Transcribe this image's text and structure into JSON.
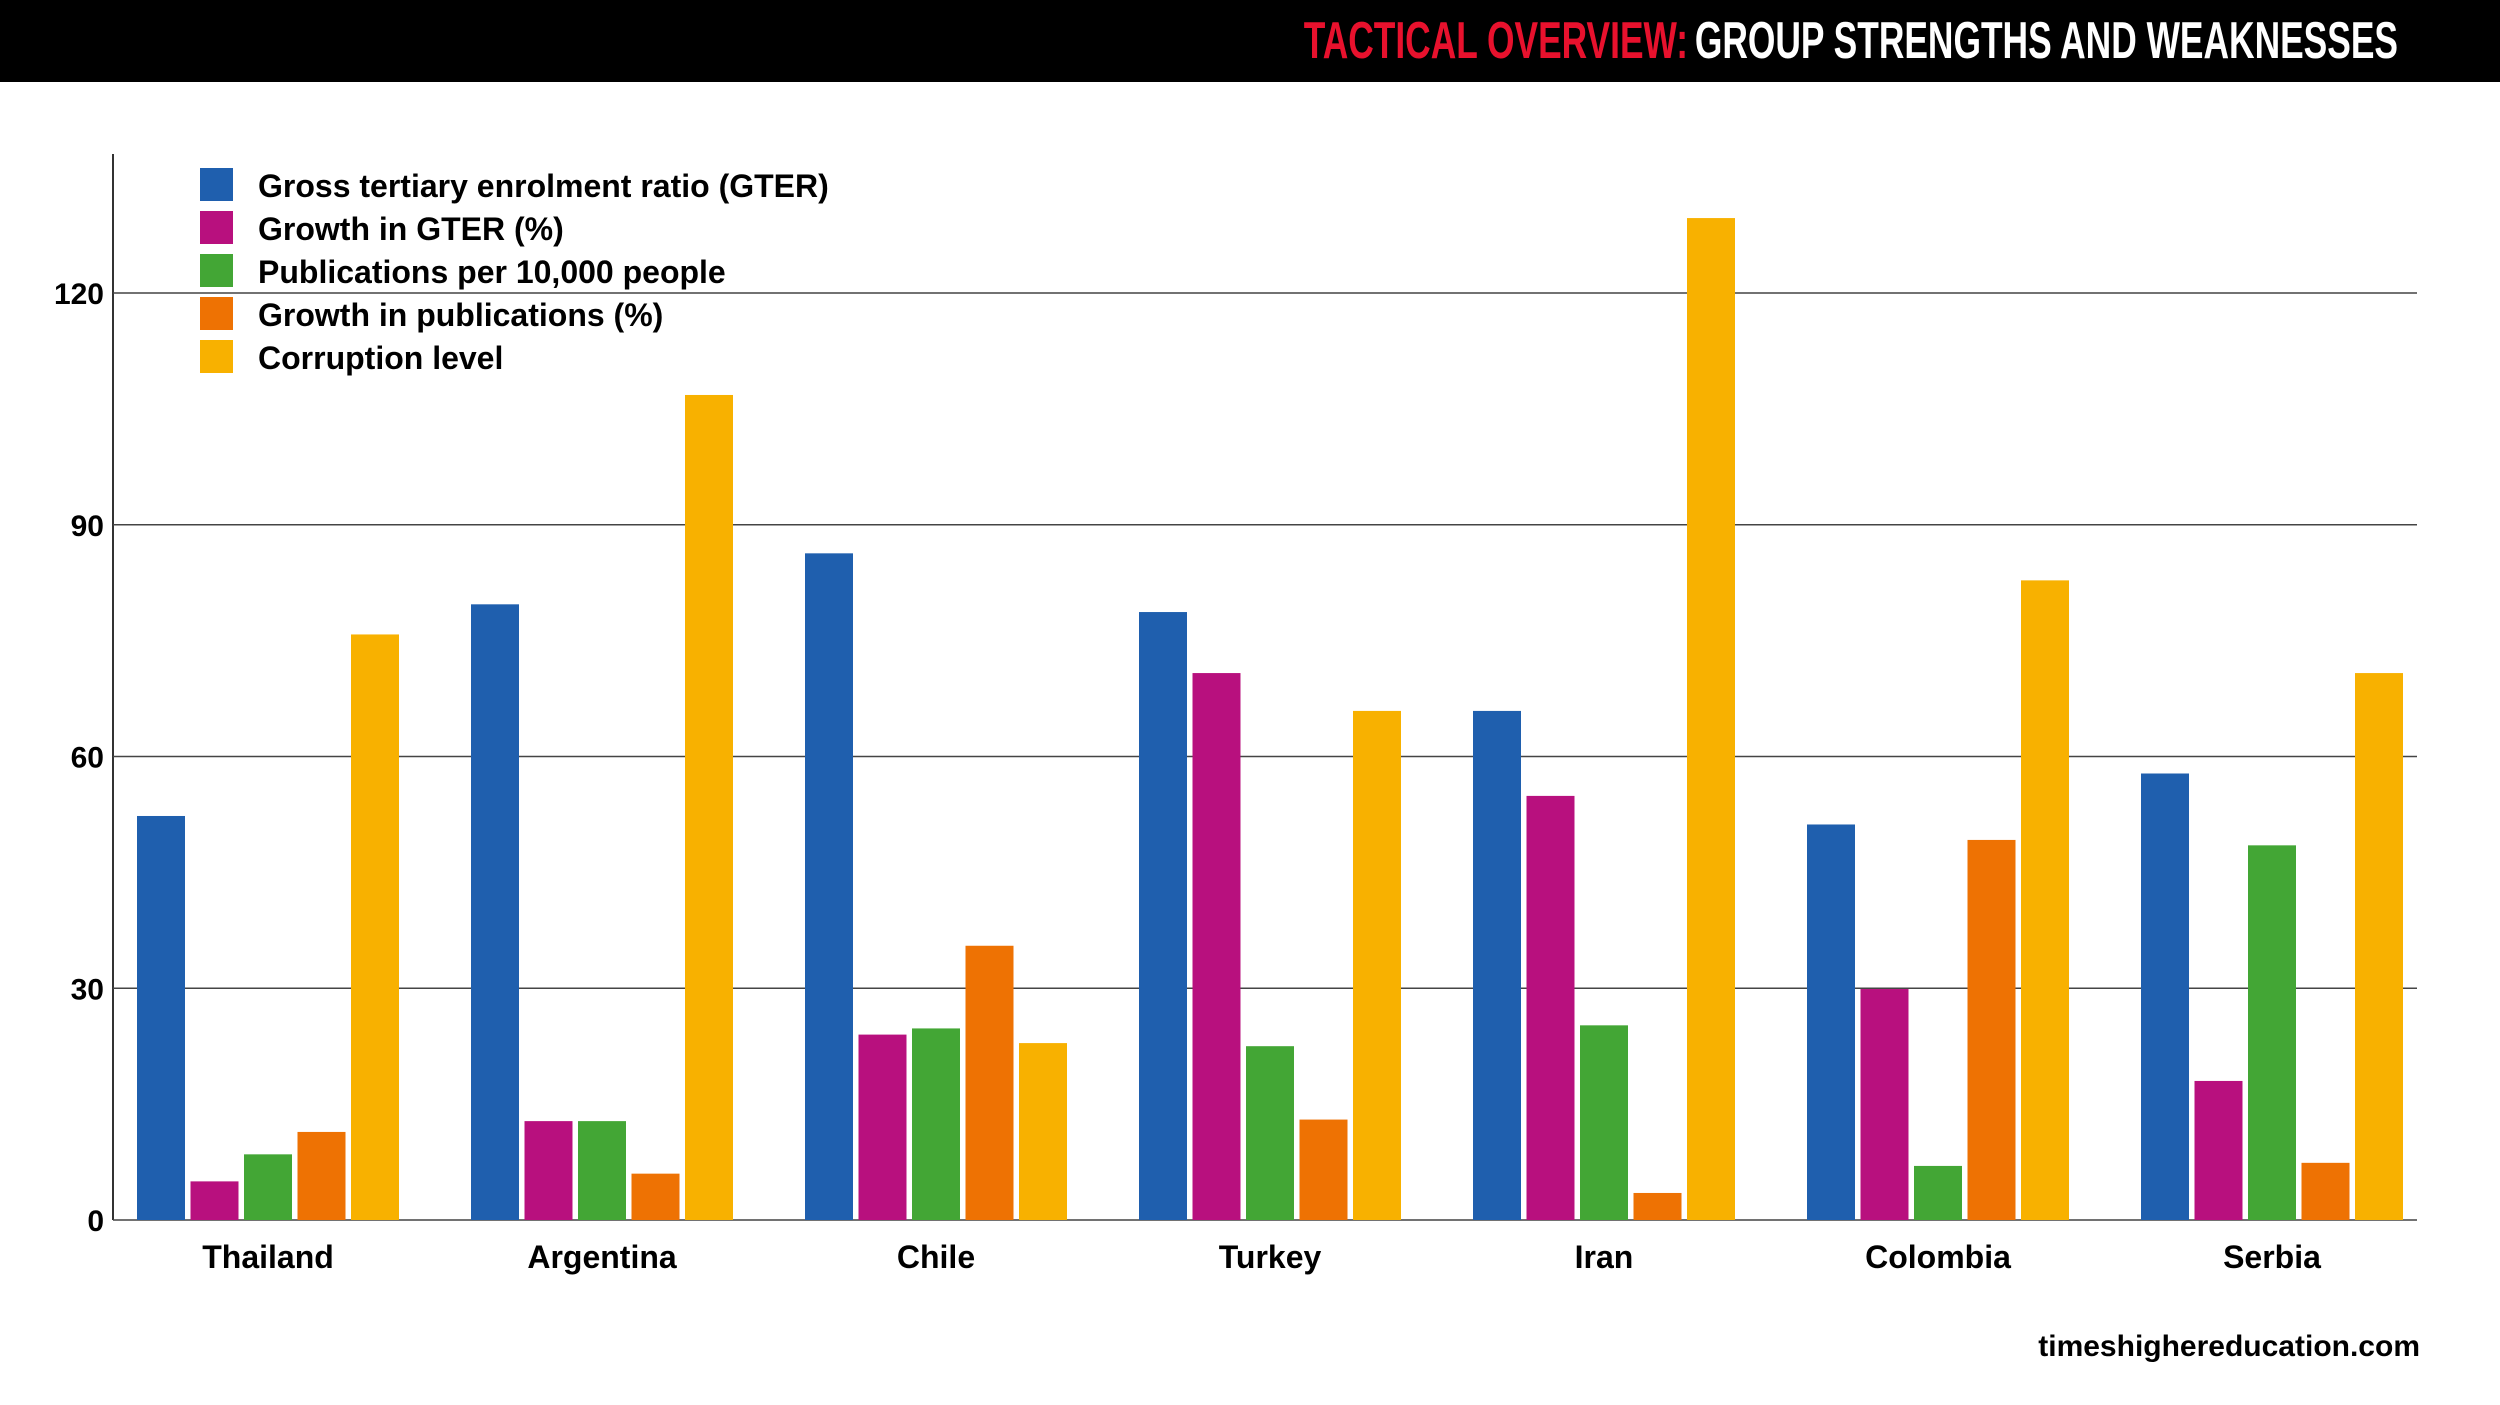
{
  "header": {
    "title_accent": "TACTICAL OVERVIEW:",
    "title_main": "GROUP STRENGTHS AND WEAKNESSES"
  },
  "footer": {
    "source": "timeshighereducation.com"
  },
  "colors": {
    "accent": "#e8112d",
    "bar": "#000000"
  },
  "chart_data": {
    "type": "bar",
    "title": "TACTICAL OVERVIEW: GROUP STRENGTHS AND WEAKNESSES",
    "xlabel": "",
    "ylabel": "",
    "ylim": [
      0,
      138
    ],
    "yticks": [
      "0",
      "30",
      "60",
      "90",
      "120"
    ],
    "grid": true,
    "legend_position": "top-left",
    "categories": [
      "Thailand",
      "Argentina",
      "Chile",
      "Turkey",
      "Iran",
      "Colombia",
      "Serbia"
    ],
    "series": [
      {
        "name": "Gross tertiary enrolment ratio (GTER)",
        "color": "#1f5fae",
        "values": [
          52.3,
          79.7,
          86.3,
          78.7,
          65.9,
          51.2,
          57.8
        ]
      },
      {
        "name": "Growth in GTER (%)",
        "color": "#b8107e",
        "values": [
          5,
          12.8,
          24,
          70.8,
          54.9,
          29.9,
          18
        ]
      },
      {
        "name": "Publications per 10,000 people",
        "color": "#43a635",
        "values": [
          8.5,
          12.8,
          24.8,
          22.5,
          25.2,
          7,
          48.5
        ]
      },
      {
        "name": "Growth in publications (%)",
        "color": "#ee7203",
        "values": [
          11.4,
          6,
          35.5,
          13,
          3.5,
          49.2,
          7.4
        ]
      },
      {
        "name": "Corruption level",
        "color": "#f8b100",
        "values": [
          75.8,
          106.8,
          22.9,
          65.9,
          129.7,
          82.8,
          70.8
        ]
      }
    ]
  }
}
